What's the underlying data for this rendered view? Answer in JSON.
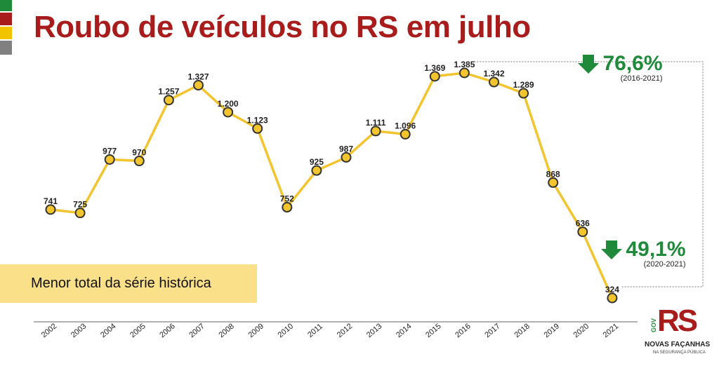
{
  "title": "Roubo de veículos no RS em julho",
  "flag_colors": [
    "#1f8a3a",
    "#a81c1c",
    "#f2c400",
    "#808080"
  ],
  "line_color": "#f2c42e",
  "marker_fill": "#f2c42e",
  "marker_stroke": "#333333",
  "callout_color": "#1f8a3a",
  "callouts": [
    {
      "pct": "76,6%",
      "period": "(2016-2021)",
      "direction": "down"
    },
    {
      "pct": "49,1%",
      "period": "(2020-2021)",
      "direction": "down"
    }
  ],
  "note": "Menor total da série histórica",
  "logo": {
    "mark": "RS",
    "gov": "GOV",
    "line1": "NOVAS FAÇANHAS",
    "line2": "NA SEGURANÇA PÚBLICA"
  },
  "chart_data": {
    "type": "line",
    "title": "Roubo de veículos no RS em julho",
    "xlabel": "",
    "ylabel": "",
    "x": [
      "2002",
      "2003",
      "2004",
      "2005",
      "2006",
      "2007",
      "2008",
      "2009",
      "2010",
      "2011",
      "2012",
      "2013",
      "2014",
      "2015",
      "2016",
      "2017",
      "2018",
      "2019",
      "2020",
      "2021"
    ],
    "values": [
      741,
      725,
      977,
      970,
      1257,
      1327,
      1200,
      1123,
      752,
      925,
      987,
      1111,
      1096,
      1369,
      1385,
      1342,
      1289,
      868,
      636,
      324
    ],
    "value_labels": [
      "741",
      "725",
      "977",
      "970",
      "1.257",
      "1.327",
      "1.200",
      "1.123",
      "752",
      "925",
      "987",
      "1.111",
      "1.096",
      "1.369",
      "1.385",
      "1.342",
      "1.289",
      "868",
      "636",
      "324"
    ],
    "ylim": [
      324,
      1385
    ],
    "grid": false,
    "legend": "none"
  }
}
